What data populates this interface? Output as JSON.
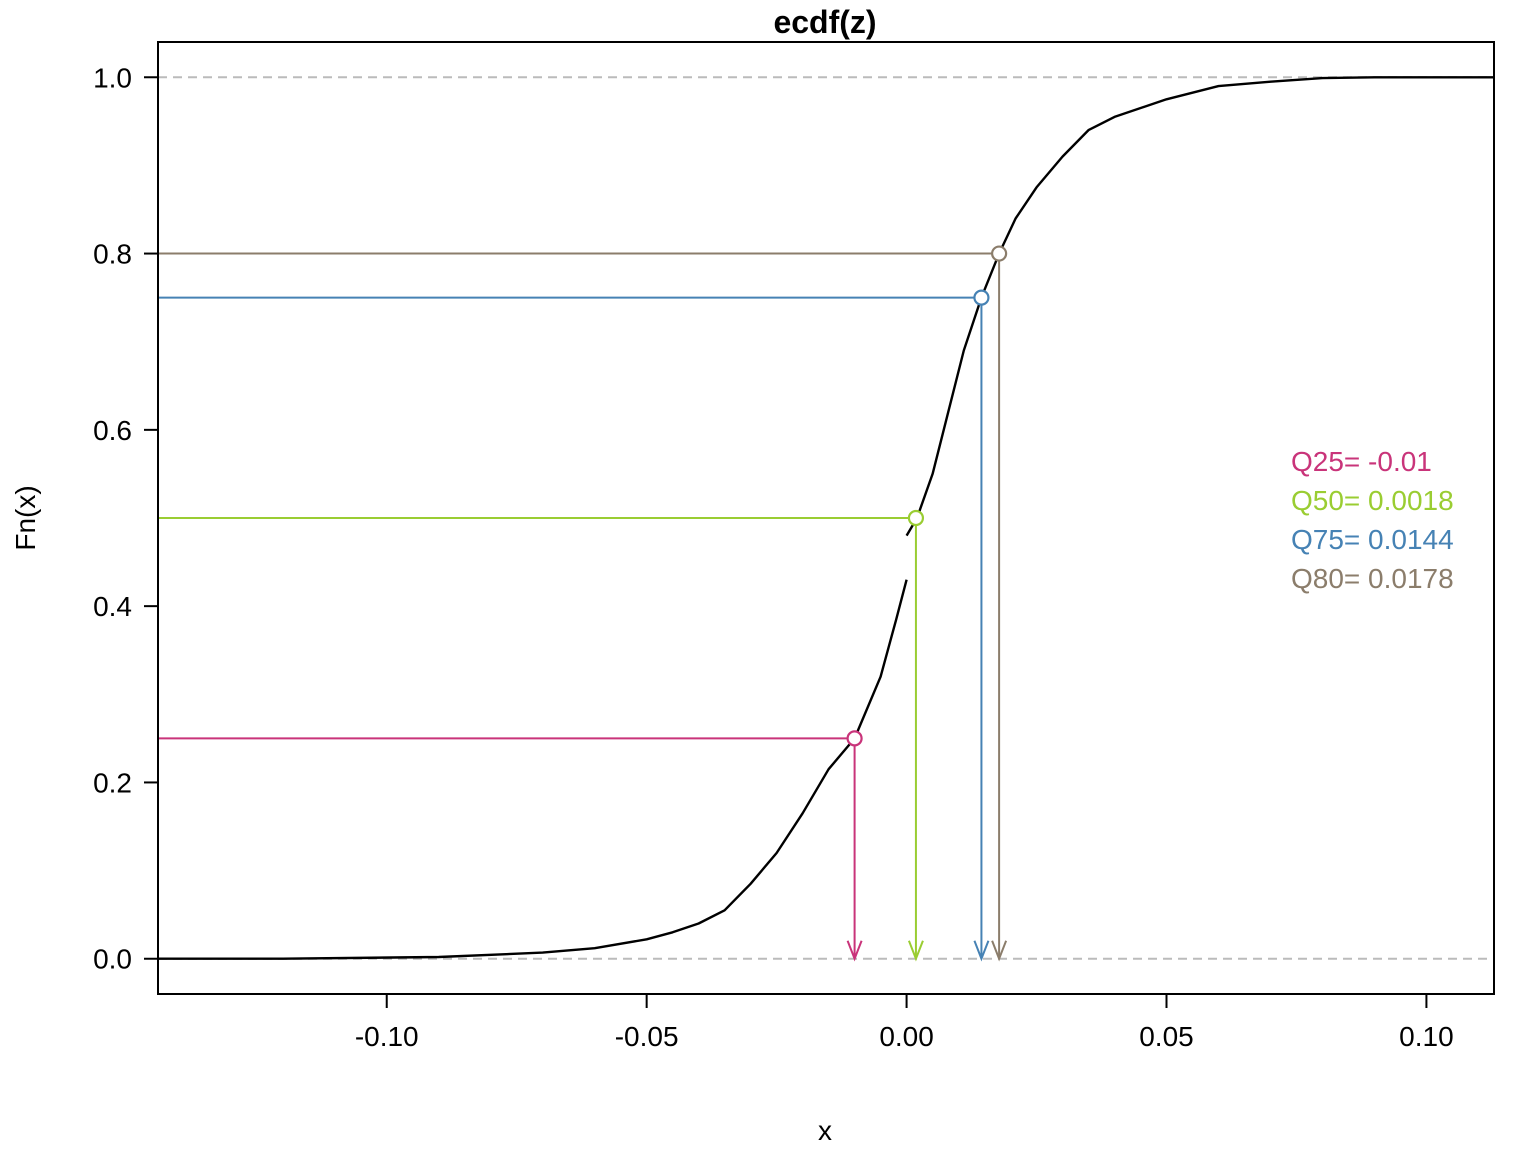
{
  "chart_data": {
    "type": "line",
    "title": "ecdf(z)",
    "xlabel": "x",
    "ylabel": "Fn(x)",
    "xlim": [
      -0.144,
      0.113
    ],
    "ylim": [
      -0.04,
      1.04
    ],
    "x_ticks": [
      -0.1,
      -0.05,
      0.0,
      0.05,
      0.1
    ],
    "x_tick_labels": [
      "-0.10",
      "-0.05",
      "0.00",
      "0.05",
      "0.10"
    ],
    "y_ticks": [
      0.0,
      0.2,
      0.4,
      0.6,
      0.8,
      1.0
    ],
    "y_tick_labels": [
      "0.0",
      "0.2",
      "0.4",
      "0.6",
      "0.8",
      "1.0"
    ],
    "reference_lines": [
      0,
      1
    ],
    "grid": false,
    "legend_position": "right",
    "ecdf_segments": [
      {
        "x": [
          -0.144,
          -0.12,
          -0.09,
          -0.07,
          -0.06,
          -0.05,
          -0.045,
          -0.04,
          -0.035,
          -0.03,
          -0.025,
          -0.02,
          -0.015,
          -0.01,
          -0.005,
          -0.002,
          0.0
        ],
        "y": [
          0.0,
          0.0,
          0.002,
          0.007,
          0.012,
          0.022,
          0.03,
          0.04,
          0.055,
          0.085,
          0.12,
          0.165,
          0.215,
          0.25,
          0.32,
          0.385,
          0.43
        ]
      },
      {
        "x": [
          0.0,
          0.002,
          0.005,
          0.008,
          0.011,
          0.0144,
          0.0178,
          0.021,
          0.025,
          0.03,
          0.035,
          0.04,
          0.05,
          0.06,
          0.07,
          0.08,
          0.09,
          0.113
        ],
        "y": [
          0.48,
          0.5,
          0.55,
          0.62,
          0.69,
          0.75,
          0.8,
          0.84,
          0.875,
          0.91,
          0.94,
          0.955,
          0.975,
          0.99,
          0.995,
          0.999,
          1.0,
          1.0
        ]
      }
    ],
    "quantiles": [
      {
        "label": "Q25= -0.01",
        "prob": 0.25,
        "x": -0.01,
        "color": "#c9347a"
      },
      {
        "label": "Q50= 0.0018",
        "prob": 0.5,
        "x": 0.0018,
        "color": "#9acd32"
      },
      {
        "label": "Q75= 0.0144",
        "prob": 0.75,
        "x": 0.0144,
        "color": "#4682b4"
      },
      {
        "label": "Q80= 0.0178",
        "prob": 0.8,
        "x": 0.0178,
        "color": "#8b7d6b"
      }
    ]
  }
}
